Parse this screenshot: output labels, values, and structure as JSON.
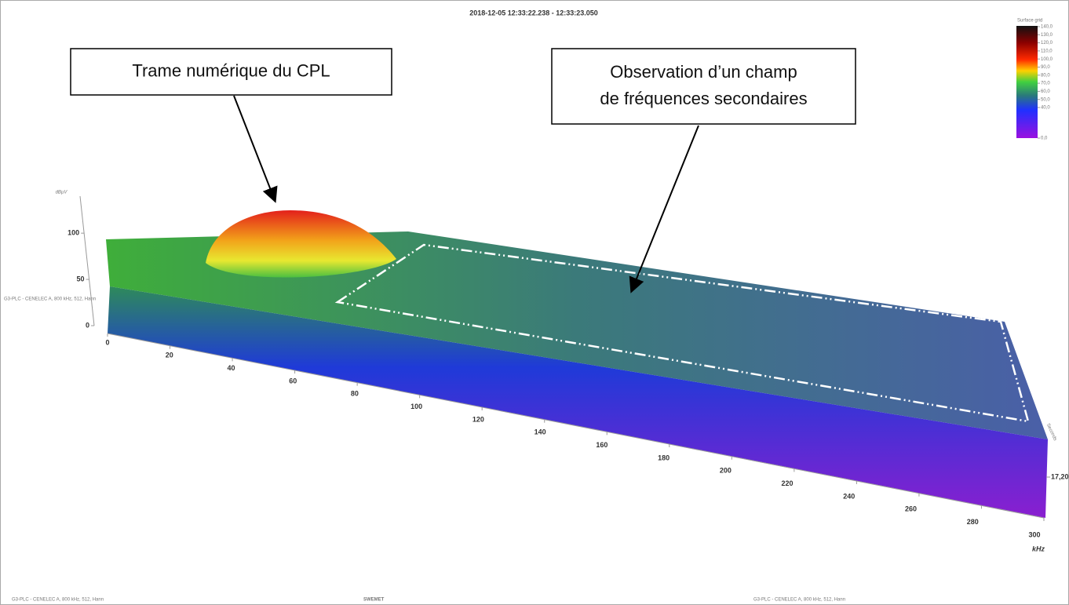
{
  "chart_data": {
    "type": "surface",
    "title": "2018-12-05 12:33:22.238 - 12:33:23.050",
    "xlabel": "kHz",
    "xlim": [
      0,
      300
    ],
    "xticks": [
      0,
      20,
      40,
      60,
      80,
      100,
      120,
      140,
      160,
      180,
      200,
      220,
      240,
      260,
      280,
      300
    ],
    "zlabel": "dBµV",
    "zlim": [
      0,
      140
    ],
    "zticks": [
      0,
      50,
      100
    ],
    "ylabel": "Seconds",
    "yticks": [
      {
        "value": 17.2,
        "label": "17,20"
      }
    ],
    "colorscale": {
      "name": "Surface grid",
      "ticks": [
        {
          "value": 140,
          "label": "140,0"
        },
        {
          "value": 130,
          "label": "130,0"
        },
        {
          "value": 120,
          "label": "120,0"
        },
        {
          "value": 110,
          "label": "110,0"
        },
        {
          "value": 100,
          "label": "100,0"
        },
        {
          "value": 90,
          "label": "90,0"
        },
        {
          "value": 80,
          "label": "80,0"
        },
        {
          "value": 70,
          "label": "70,0"
        },
        {
          "value": 60,
          "label": "60,0"
        },
        {
          "value": 50,
          "label": "50,0"
        },
        {
          "value": 40,
          "label": "40,0"
        },
        {
          "value": 0,
          "label": "0,0"
        }
      ]
    },
    "annotations": [
      {
        "lines": [
          "Trame numérique du CPL"
        ]
      },
      {
        "lines": [
          "Observation d’un champ",
          "de fréquences secondaires"
        ]
      }
    ]
  },
  "side_label": "G3-PLC - CENELEC A, 800 kHz, 512, Hann",
  "footer": {
    "left": "G3-PLC - CENELEC A, 800 kHz, 512, Hann",
    "center": "SWEMET",
    "right": "G3-PLC - CENELEC A, 800 kHz, 512, Hann"
  }
}
